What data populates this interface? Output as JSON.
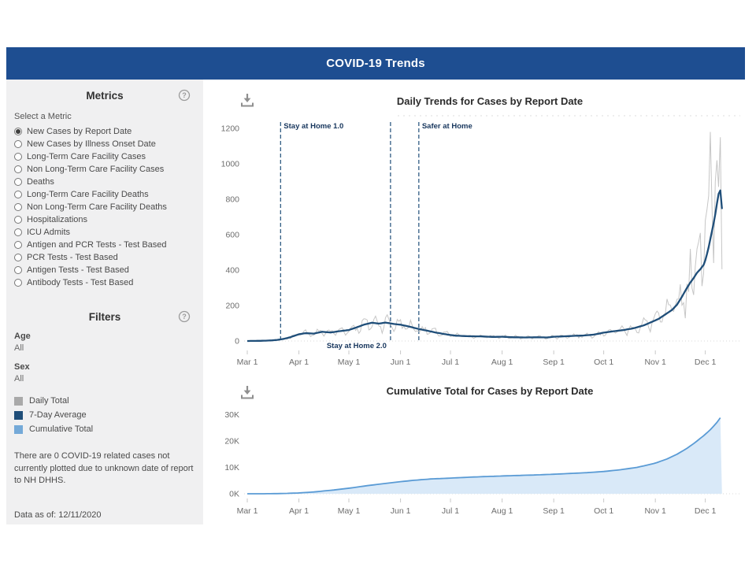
{
  "header": {
    "title": "COVID-19 Trends"
  },
  "colors": {
    "header_bar": "#1e4e91",
    "seven_day_average": "#1f4e79",
    "daily_total": "#c6c6c6",
    "cumulative_line": "#5a9bd5",
    "cumulative_fill": "#d9e9f8",
    "annotation_text": "#17365d"
  },
  "sidebar": {
    "metrics": {
      "heading": "Metrics",
      "select_label": "Select a Metric",
      "selected_index": 0,
      "options": [
        "New Cases by Report Date",
        "New Cases by Illness Onset Date",
        "Long-Term Care Facility Cases",
        "Non Long-Term Care Facility Cases",
        "Deaths",
        "Long-Term Care Facility Deaths",
        "Non Long-Term Care Facility Deaths",
        "Hospitalizations",
        "ICU Admits",
        "Antigen and PCR Tests - Test Based",
        "PCR Tests - Test Based",
        "Antigen Tests - Test Based",
        "Antibody Tests - Test Based"
      ]
    },
    "filters": {
      "heading": "Filters",
      "fields": [
        {
          "label": "Age",
          "value": "All"
        },
        {
          "label": "Sex",
          "value": "All"
        }
      ]
    },
    "legend": {
      "items": [
        {
          "label": "Daily Total",
          "color": "#a9a9a9"
        },
        {
          "label": "7-Day Average",
          "color": "#1f4e79"
        },
        {
          "label": "Cumulative Total",
          "color": "#74a9d8"
        }
      ]
    },
    "note": "There are 0 COVID-19 related cases not currently plotted due to unknown date of report to NH DHHS.",
    "data_as_of": "Data as of: 12/11/2020"
  },
  "chart_data": [
    {
      "id": "daily",
      "type": "line",
      "title": "Daily Trends for Cases by Report Date",
      "x_axis": {
        "start_day": 0,
        "end_day": 285,
        "months": [
          {
            "label": "Mar 1",
            "day": 0
          },
          {
            "label": "Apr 1",
            "day": 31
          },
          {
            "label": "May 1",
            "day": 61
          },
          {
            "label": "Jun 1",
            "day": 92
          },
          {
            "label": "Jul 1",
            "day": 122
          },
          {
            "label": "Aug 1",
            "day": 153
          },
          {
            "label": "Sep 1",
            "day": 184
          },
          {
            "label": "Oct 1",
            "day": 214
          },
          {
            "label": "Nov 1",
            "day": 245
          },
          {
            "label": "Dec 1",
            "day": 275
          }
        ]
      },
      "y_axis": {
        "ticks": [
          0,
          200,
          400,
          600,
          800,
          1000,
          1200
        ],
        "max": 1250
      },
      "annotations": [
        {
          "label": "Stay at Home 1.0",
          "day": 20,
          "position": "top",
          "align": "right"
        },
        {
          "label": "Stay at Home 2.0",
          "day": 86,
          "position": "bottom",
          "align": "left"
        },
        {
          "label": "Safer at Home",
          "day": 103,
          "position": "top",
          "align": "right"
        }
      ],
      "series": [
        {
          "name": "7-Day Average",
          "color": "#1f4e79",
          "width": 2.3,
          "points": [
            [
              0,
              0
            ],
            [
              8,
              1
            ],
            [
              14,
              3
            ],
            [
              18,
              6
            ],
            [
              22,
              12
            ],
            [
              26,
              22
            ],
            [
              31,
              38
            ],
            [
              35,
              44
            ],
            [
              40,
              42
            ],
            [
              45,
              52
            ],
            [
              50,
              48
            ],
            [
              55,
              55
            ],
            [
              61,
              62
            ],
            [
              66,
              78
            ],
            [
              70,
              92
            ],
            [
              75,
              103
            ],
            [
              79,
              98
            ],
            [
              83,
              104
            ],
            [
              88,
              96
            ],
            [
              92,
              92
            ],
            [
              97,
              82
            ],
            [
              102,
              70
            ],
            [
              107,
              60
            ],
            [
              113,
              48
            ],
            [
              119,
              38
            ],
            [
              125,
              30
            ],
            [
              132,
              27
            ],
            [
              140,
              26
            ],
            [
              147,
              23
            ],
            [
              153,
              24
            ],
            [
              160,
              21
            ],
            [
              167,
              20
            ],
            [
              174,
              21
            ],
            [
              180,
              20
            ],
            [
              184,
              24
            ],
            [
              190,
              26
            ],
            [
              196,
              29
            ],
            [
              202,
              31
            ],
            [
              208,
              36
            ],
            [
              214,
              47
            ],
            [
              220,
              55
            ],
            [
              226,
              62
            ],
            [
              232,
              72
            ],
            [
              238,
              88
            ],
            [
              243,
              108
            ],
            [
              247,
              125
            ],
            [
              251,
              150
            ],
            [
              255,
              175
            ],
            [
              258,
              205
            ],
            [
              261,
              250
            ],
            [
              264,
              300
            ],
            [
              266,
              330
            ],
            [
              268,
              355
            ],
            [
              270,
              385
            ],
            [
              272,
              405
            ],
            [
              274,
              430
            ],
            [
              275,
              455
            ],
            [
              276,
              490
            ],
            [
              277,
              530
            ],
            [
              278,
              575
            ],
            [
              279,
              620
            ],
            [
              280,
              665
            ],
            [
              281,
              715
            ],
            [
              282,
              775
            ],
            [
              283,
              830
            ],
            [
              284,
              850
            ],
            [
              285,
              745
            ]
          ]
        },
        {
          "name": "Daily Total",
          "color": "#c6c6c6",
          "width": 1,
          "generated_from_avg": true,
          "noise": {
            "seed": 7,
            "weekly_amp": 0.32,
            "random_amp": 0.5,
            "phase": 1.3
          },
          "overrides": {
            "266": 520,
            "267": 300,
            "268": 260,
            "269": 420,
            "270": 520,
            "271": 560,
            "272": 610,
            "273": 310,
            "274": 380,
            "275": 680,
            "276": 740,
            "277": 820,
            "278": 1180,
            "279": 760,
            "280": 440,
            "281": 900,
            "282": 1020,
            "283": 870,
            "284": 1150,
            "285": 405
          }
        }
      ]
    },
    {
      "id": "cumulative",
      "type": "area",
      "title": "Cumulative Total for Cases by Report Date",
      "x_axis": {
        "start_day": 0,
        "end_day": 285,
        "months": [
          {
            "label": "Mar 1",
            "day": 0
          },
          {
            "label": "Apr 1",
            "day": 31
          },
          {
            "label": "May 1",
            "day": 61
          },
          {
            "label": "Jun 1",
            "day": 92
          },
          {
            "label": "Jul 1",
            "day": 122
          },
          {
            "label": "Aug 1",
            "day": 153
          },
          {
            "label": "Sep 1",
            "day": 184
          },
          {
            "label": "Oct 1",
            "day": 214
          },
          {
            "label": "Nov 1",
            "day": 245
          },
          {
            "label": "Dec 1",
            "day": 275
          }
        ]
      },
      "y_axis": {
        "ticks": [
          "0K",
          "10K",
          "20K",
          "30K"
        ],
        "tick_values": [
          0,
          10000,
          20000,
          30000
        ],
        "max": 32000
      },
      "series": [
        {
          "name": "Cumulative Total",
          "line_color": "#5a9bd5",
          "fill_color": "#d9e9f8",
          "points": [
            [
              0,
              0
            ],
            [
              10,
              10
            ],
            [
              20,
              80
            ],
            [
              31,
              300
            ],
            [
              40,
              700
            ],
            [
              50,
              1300
            ],
            [
              61,
              2100
            ],
            [
              70,
              2900
            ],
            [
              80,
              3700
            ],
            [
              92,
              4600
            ],
            [
              100,
              5100
            ],
            [
              110,
              5600
            ],
            [
              122,
              5950
            ],
            [
              132,
              6250
            ],
            [
              142,
              6500
            ],
            [
              153,
              6750
            ],
            [
              163,
              6950
            ],
            [
              174,
              7150
            ],
            [
              184,
              7400
            ],
            [
              194,
              7700
            ],
            [
              204,
              8000
            ],
            [
              214,
              8450
            ],
            [
              224,
              9100
            ],
            [
              234,
              10000
            ],
            [
              245,
              11600
            ],
            [
              252,
              13200
            ],
            [
              258,
              15000
            ],
            [
              263,
              16800
            ],
            [
              268,
              19000
            ],
            [
              272,
              21000
            ],
            [
              275,
              22500
            ],
            [
              278,
              24300
            ],
            [
              281,
              26300
            ],
            [
              283,
              27800
            ],
            [
              285,
              29800
            ]
          ]
        }
      ]
    }
  ]
}
